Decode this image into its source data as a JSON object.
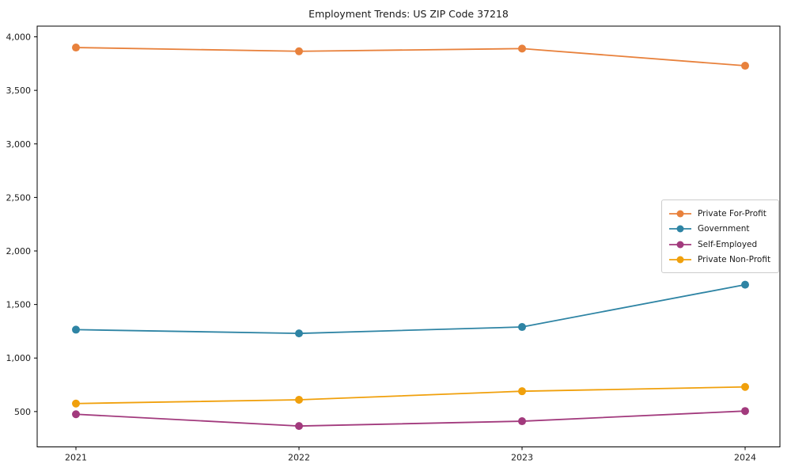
{
  "chart_data": {
    "type": "line",
    "title": "Employment Trends: US ZIP Code 37218",
    "x": [
      2021,
      2022,
      2023,
      2024
    ],
    "x_tick_labels": [
      "2021",
      "2022",
      "2023",
      "2024"
    ],
    "y_ticks": [
      500,
      1000,
      1500,
      2000,
      2500,
      3000,
      3500,
      4000
    ],
    "y_tick_labels": [
      "500",
      "1,000",
      "1,500",
      "2,000",
      "2,500",
      "3,000",
      "3,500",
      "4,000"
    ],
    "ylim": [
      170,
      4100
    ],
    "grid": false,
    "legend_position": "center right",
    "background_color": "#ffffff",
    "axis_color": "#000000",
    "text_color": "#1a1a1a",
    "series": [
      {
        "name": "Private For-Profit",
        "color": "#E8813C",
        "values": [
          3900,
          3865,
          3890,
          3730
        ]
      },
      {
        "name": "Government",
        "color": "#2E84A4",
        "values": [
          1265,
          1230,
          1290,
          1685
        ]
      },
      {
        "name": "Self-Employed",
        "color": "#A23A7D",
        "values": [
          475,
          365,
          410,
          505
        ]
      },
      {
        "name": "Private Non-Profit",
        "color": "#F0A00C",
        "values": [
          575,
          610,
          690,
          730
        ]
      }
    ]
  }
}
